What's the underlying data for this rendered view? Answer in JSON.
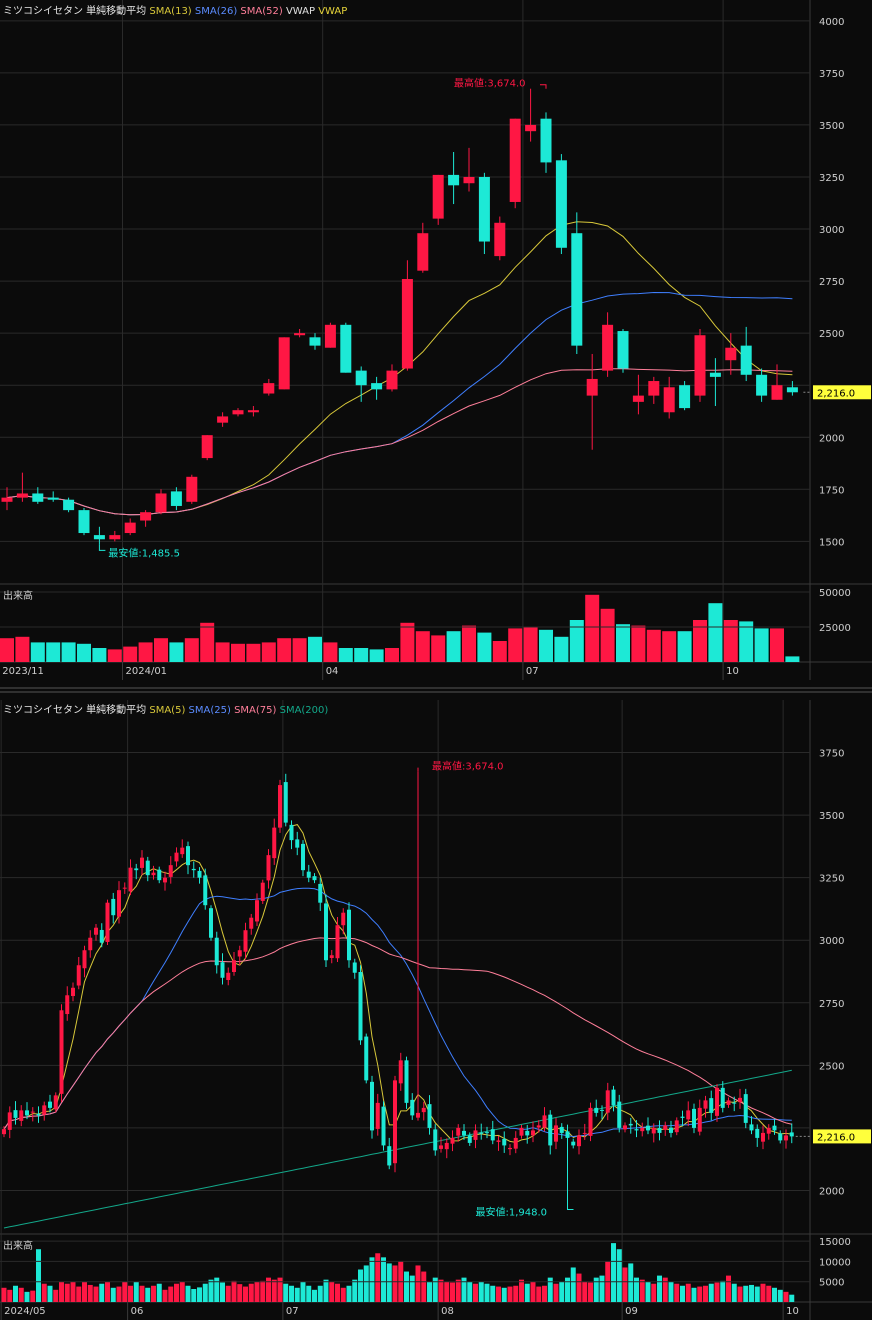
{
  "colors": {
    "background": "#0b0b0b",
    "grid": "#2a2a2a",
    "axis_text": "#cfcfcf",
    "up": "#ff1744",
    "down": "#1de9d6",
    "sma_yellow": "#d8c83a",
    "sma_blue": "#3f7fff",
    "sma_pink": "#ff7f9a",
    "sma_teal": "#13a88a",
    "price_tag_bg": "#ffff3c"
  },
  "chart_data": [
    {
      "type": "candlestick",
      "name": "weekly",
      "legend": {
        "title": "ミツコシイセタン 単純移動平均",
        "items": [
          {
            "label": "SMA(13)",
            "color": "#d8c83a"
          },
          {
            "label": "SMA(26)",
            "color": "#5b8cff"
          },
          {
            "label": "SMA(52)",
            "color": "#ff7f9a"
          },
          {
            "label": "VWAP",
            "color": "#e0e0e0"
          },
          {
            "label": "VWAP",
            "color": "#e6d43a"
          }
        ]
      },
      "ylim": [
        1300,
        4100
      ],
      "yticks": [
        1500,
        1750,
        2000,
        2250,
        2500,
        2750,
        3000,
        3250,
        3500,
        3750,
        4000
      ],
      "ytick_labels": [
        "1500",
        "1750",
        "2000",
        "",
        "2500",
        "2750",
        "3000",
        "3250",
        "3500",
        "3750",
        "4000"
      ],
      "last_price": "2,216.0",
      "last_value": 2216,
      "high_label": "最高値:3,674.0",
      "high_index": 35,
      "high_value": 3674,
      "low_label": "最安値:1,485.5",
      "low_index": 6,
      "low_value": 1485.5,
      "xlabels": [
        {
          "label": "2023/11",
          "index": 0
        },
        {
          "label": "2024/01",
          "index": 8
        },
        {
          "label": "04",
          "index": 21
        },
        {
          "label": "07",
          "index": 34
        },
        {
          "label": "10",
          "index": 47
        }
      ],
      "candles": [
        {
          "o": 1690,
          "h": 1760,
          "l": 1650,
          "c": 1710
        },
        {
          "o": 1710,
          "h": 1830,
          "l": 1690,
          "c": 1730
        },
        {
          "o": 1730,
          "h": 1760,
          "l": 1680,
          "c": 1690
        },
        {
          "o": 1710,
          "h": 1740,
          "l": 1690,
          "c": 1700
        },
        {
          "o": 1700,
          "h": 1710,
          "l": 1640,
          "c": 1650
        },
        {
          "o": 1650,
          "h": 1660,
          "l": 1530,
          "c": 1540
        },
        {
          "o": 1530,
          "h": 1570,
          "l": 1485.5,
          "c": 1510
        },
        {
          "o": 1510,
          "h": 1550,
          "l": 1500,
          "c": 1530
        },
        {
          "o": 1540,
          "h": 1610,
          "l": 1530,
          "c": 1590
        },
        {
          "o": 1600,
          "h": 1650,
          "l": 1570,
          "c": 1640
        },
        {
          "o": 1640,
          "h": 1750,
          "l": 1630,
          "c": 1730
        },
        {
          "o": 1740,
          "h": 1760,
          "l": 1650,
          "c": 1670
        },
        {
          "o": 1690,
          "h": 1820,
          "l": 1680,
          "c": 1810
        },
        {
          "o": 1900,
          "h": 2010,
          "l": 1890,
          "c": 2010
        },
        {
          "o": 2070,
          "h": 2120,
          "l": 2050,
          "c": 2100
        },
        {
          "o": 2110,
          "h": 2140,
          "l": 2100,
          "c": 2130
        },
        {
          "o": 2120,
          "h": 2150,
          "l": 2100,
          "c": 2130
        },
        {
          "o": 2210,
          "h": 2280,
          "l": 2200,
          "c": 2260
        },
        {
          "o": 2230,
          "h": 2480,
          "l": 2230,
          "c": 2480
        },
        {
          "o": 2490,
          "h": 2520,
          "l": 2480,
          "c": 2500
        },
        {
          "o": 2480,
          "h": 2500,
          "l": 2420,
          "c": 2440
        },
        {
          "o": 2430,
          "h": 2550,
          "l": 2430,
          "c": 2540
        },
        {
          "o": 2540,
          "h": 2550,
          "l": 2310,
          "c": 2310
        },
        {
          "o": 2320,
          "h": 2340,
          "l": 2170,
          "c": 2250
        },
        {
          "o": 2260,
          "h": 2290,
          "l": 2180,
          "c": 2230
        },
        {
          "o": 2230,
          "h": 2350,
          "l": 2220,
          "c": 2320
        },
        {
          "o": 2330,
          "h": 2850,
          "l": 2320,
          "c": 2760
        },
        {
          "o": 2800,
          "h": 3030,
          "l": 2790,
          "c": 2980
        },
        {
          "o": 3050,
          "h": 3260,
          "l": 3020,
          "c": 3260
        },
        {
          "o": 3260,
          "h": 3370,
          "l": 3120,
          "c": 3210
        },
        {
          "o": 3220,
          "h": 3390,
          "l": 3180,
          "c": 3250
        },
        {
          "o": 3250,
          "h": 3270,
          "l": 2880,
          "c": 2940
        },
        {
          "o": 2870,
          "h": 3060,
          "l": 2850,
          "c": 3030
        },
        {
          "o": 3130,
          "h": 3530,
          "l": 3100,
          "c": 3530
        },
        {
          "o": 3470,
          "h": 3674,
          "l": 3420,
          "c": 3500
        },
        {
          "o": 3530,
          "h": 3560,
          "l": 3270,
          "c": 3320
        },
        {
          "o": 3330,
          "h": 3360,
          "l": 2880,
          "c": 2910
        },
        {
          "o": 2980,
          "h": 3080,
          "l": 2400,
          "c": 2440
        },
        {
          "o": 2200,
          "h": 2400,
          "l": 1940,
          "c": 2280
        },
        {
          "o": 2320,
          "h": 2600,
          "l": 2290,
          "c": 2540
        },
        {
          "o": 2510,
          "h": 2520,
          "l": 2310,
          "c": 2330
        },
        {
          "o": 2170,
          "h": 2300,
          "l": 2110,
          "c": 2200
        },
        {
          "o": 2200,
          "h": 2290,
          "l": 2160,
          "c": 2270
        },
        {
          "o": 2120,
          "h": 2290,
          "l": 2090,
          "c": 2240
        },
        {
          "o": 2250,
          "h": 2270,
          "l": 2130,
          "c": 2140
        },
        {
          "o": 2200,
          "h": 2520,
          "l": 2170,
          "c": 2490
        },
        {
          "o": 2310,
          "h": 2380,
          "l": 2150,
          "c": 2290
        },
        {
          "o": 2370,
          "h": 2500,
          "l": 2300,
          "c": 2430
        },
        {
          "o": 2440,
          "h": 2530,
          "l": 2270,
          "c": 2300
        },
        {
          "o": 2300,
          "h": 2330,
          "l": 2170,
          "c": 2200
        },
        {
          "o": 2180,
          "h": 2350,
          "l": 2180,
          "c": 2250
        },
        {
          "o": 2240,
          "h": 2270,
          "l": 2200,
          "c": 2216
        }
      ],
      "volume": {
        "label": "出来高",
        "ylim": [
          0,
          55000
        ],
        "yticks": [
          25000,
          50000
        ],
        "values": [
          17000,
          18000,
          14000,
          14000,
          14000,
          13000,
          10000,
          9000,
          11000,
          14000,
          17000,
          14000,
          17000,
          28000,
          14000,
          13000,
          13000,
          14000,
          17000,
          17000,
          18000,
          14000,
          10000,
          10000,
          9000,
          10000,
          28000,
          22000,
          19000,
          22000,
          26000,
          21000,
          15000,
          24000,
          25000,
          23000,
          18000,
          30000,
          48000,
          38000,
          27000,
          26000,
          23000,
          22000,
          22000,
          30000,
          42000,
          30000,
          29000,
          24000,
          24000,
          4000
        ]
      }
    },
    {
      "type": "candlestick",
      "name": "daily",
      "legend": {
        "title": "ミツコシイセタン 単純移動平均",
        "items": [
          {
            "label": "SMA(5)",
            "color": "#d8c83a"
          },
          {
            "label": "SMA(25)",
            "color": "#5b8cff"
          },
          {
            "label": "SMA(75)",
            "color": "#ff7f9a"
          },
          {
            "label": "SMA(200)",
            "color": "#13a88a"
          }
        ]
      },
      "ylim": [
        1830,
        3960
      ],
      "yticks": [
        2000,
        2250,
        2500,
        2750,
        3000,
        3250,
        3500,
        3750
      ],
      "ytick_labels": [
        "2000",
        "",
        "2500",
        "2750",
        "3000",
        "3250",
        "3500",
        "3750"
      ],
      "last_price": "2,216.0",
      "last_value": 2216,
      "high_label": "最高値:3,674.0",
      "high_index": 72,
      "high_value": 3674,
      "low_label": "最安値:1,948.0",
      "low_index": 98,
      "low_value": 1948,
      "xlabels": [
        {
          "label": "2024/05",
          "index": 0
        },
        {
          "label": "06",
          "index": 22
        },
        {
          "label": "07",
          "index": 49
        },
        {
          "label": "08",
          "index": 76
        },
        {
          "label": "09",
          "index": 108
        },
        {
          "label": "10",
          "index": 136
        }
      ],
      "closes": [
        2245,
        2312,
        2290,
        2320,
        2300,
        2315,
        2300,
        2340,
        2330,
        2380,
        2720,
        2780,
        2810,
        2900,
        2960,
        3010,
        3050,
        2990,
        3150,
        3100,
        3200,
        3210,
        3290,
        3280,
        3330,
        3260,
        3270,
        3240,
        3250,
        3300,
        3350,
        3370,
        3300,
        3280,
        3250,
        3140,
        3010,
        2900,
        2850,
        2870,
        2920,
        2960,
        3040,
        3090,
        3160,
        3230,
        3340,
        3450,
        3620,
        3470,
        3400,
        3370,
        3280,
        3250,
        3240,
        3150,
        2920,
        2940,
        3060,
        3110,
        2920,
        2870,
        2600,
        2440,
        2240,
        2350,
        2180,
        2100,
        2440,
        2520,
        2350,
        2300,
        2310,
        2330,
        2250,
        2160,
        2180,
        2190,
        2210,
        2250,
        2220,
        2190,
        2240,
        2230,
        2230,
        2200,
        2200,
        2180,
        2170,
        2210,
        2250,
        2220,
        2240,
        2260,
        2300,
        2180,
        2260,
        2230,
        2210,
        2180,
        2220,
        2230,
        2330,
        2310,
        2320,
        2400,
        2340,
        2250,
        2260,
        2260,
        2240,
        2250,
        2240,
        2250,
        2230,
        2260,
        2230,
        2280,
        2290,
        2320,
        2250,
        2330,
        2360,
        2310,
        2410,
        2330,
        2360,
        2350,
        2370,
        2270,
        2240,
        2210,
        2230,
        2250,
        2240,
        2200,
        2220,
        2216
      ],
      "volume": {
        "label": "出来高",
        "ylim": [
          0,
          16500
        ],
        "yticks": [
          5000,
          10000,
          15000
        ],
        "values": [
          3500,
          3000,
          4000,
          3500,
          2500,
          2800,
          13000,
          4500,
          4000,
          3000,
          5000,
          4500,
          5000,
          3800,
          5000,
          4200,
          3800,
          4500,
          5000,
          3500,
          3800,
          5000,
          4000,
          5000,
          4000,
          3500,
          4000,
          4500,
          3000,
          3800,
          4500,
          5000,
          4000,
          3200,
          3600,
          4500,
          5500,
          6000,
          4800,
          4000,
          5200,
          4400,
          3800,
          4500,
          5000,
          5200,
          6000,
          5500,
          6000,
          4500,
          4000,
          3500,
          5000,
          4000,
          3000,
          4000,
          5500,
          5000,
          4500,
          3500,
          4000,
          5500,
          8000,
          9000,
          11000,
          12000,
          11000,
          9500,
          9000,
          10000,
          7500,
          6500,
          9000,
          7500,
          5000,
          6000,
          5500,
          5000,
          4800,
          5500,
          6000,
          5000,
          4500,
          5000,
          4500,
          4000,
          3800,
          3500,
          3800,
          4000,
          5500,
          4500,
          5000,
          3800,
          4000,
          6000,
          4500,
          5000,
          6000,
          8500,
          7000,
          5000,
          4800,
          6000,
          6500,
          10000,
          14500,
          13000,
          8500,
          9500,
          6000,
          5500,
          5000,
          4500,
          6500,
          6000,
          5000,
          4500,
          4000,
          4500,
          3500,
          3800,
          4000,
          4500,
          4800,
          5200,
          6500,
          4500,
          3800,
          4000,
          4200,
          3800,
          4500,
          4000,
          3500,
          3000,
          2500,
          1800
        ]
      }
    }
  ]
}
